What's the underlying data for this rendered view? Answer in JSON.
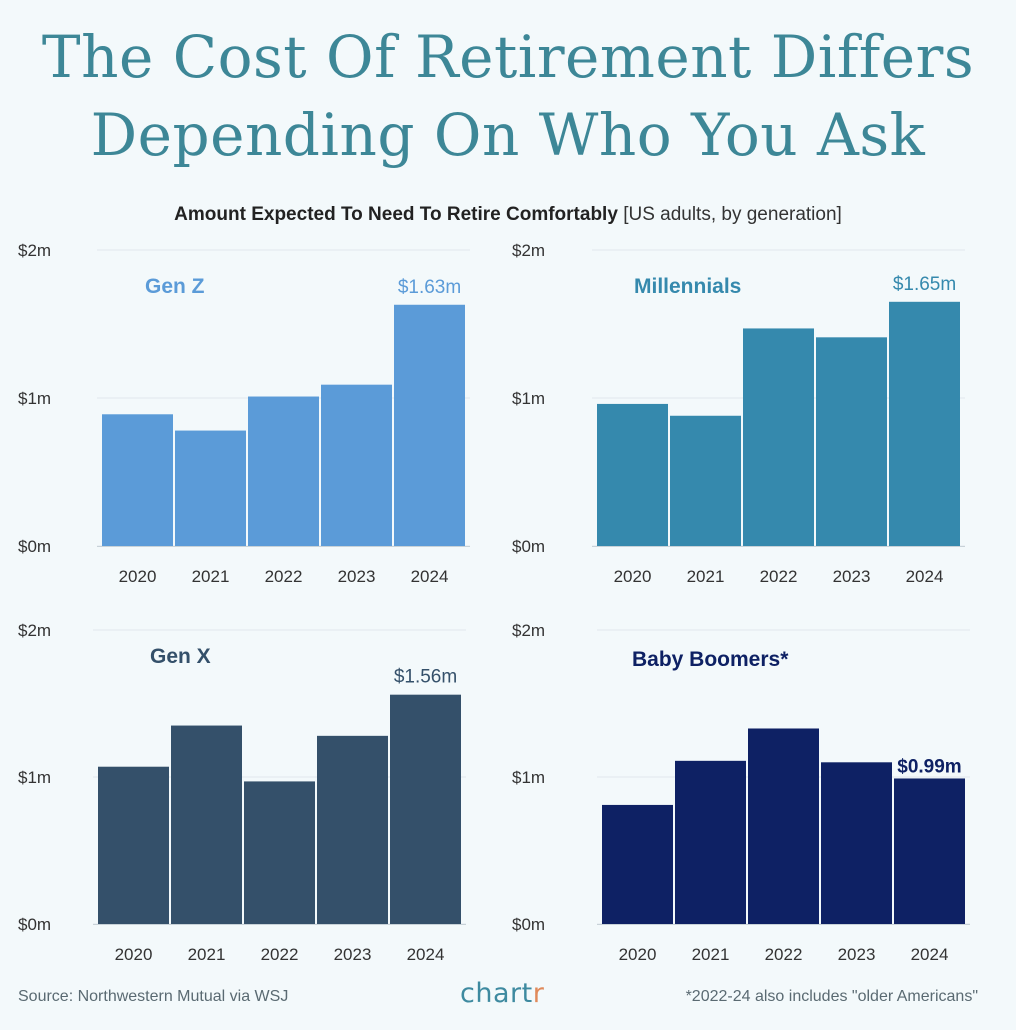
{
  "title_lines": [
    "The Cost Of Retirement Differs",
    "Depending On Who You Ask"
  ],
  "subtitle": {
    "main": "Amount Expected To Need To Retire Comfortably",
    "note": "[US adults, by generation]"
  },
  "footer": {
    "source": "Source: Northwestern Mutual via WSJ",
    "logo_main": "chart",
    "logo_accent": "r",
    "note": "*2022-24 also includes \"older Americans\""
  },
  "colors": {
    "gen_z": "#5b9bd8",
    "millennials": "#3589ad",
    "gen_x": "#34506a",
    "boomers": "#0e2164",
    "axis_text": "#333333",
    "grid": "#e2e8ec"
  },
  "chart_data": [
    {
      "type": "bar",
      "title": "Gen Z",
      "categories": [
        "2020",
        "2021",
        "2022",
        "2023",
        "2024"
      ],
      "values": [
        0.89,
        0.78,
        1.01,
        1.09,
        1.63
      ],
      "ylim": [
        0,
        2
      ],
      "yticks": [
        "$0m",
        "$1m",
        "$2m"
      ],
      "annotation": {
        "index": 4,
        "text": "$1.63m"
      }
    },
    {
      "type": "bar",
      "title": "Millennials",
      "categories": [
        "2020",
        "2021",
        "2022",
        "2023",
        "2024"
      ],
      "values": [
        0.96,
        0.88,
        1.47,
        1.41,
        1.65
      ],
      "ylim": [
        0,
        2
      ],
      "yticks": [
        "$0m",
        "$1m",
        "$2m"
      ],
      "annotation": {
        "index": 4,
        "text": "$1.65m"
      }
    },
    {
      "type": "bar",
      "title": "Gen X",
      "categories": [
        "2020",
        "2021",
        "2022",
        "2023",
        "2024"
      ],
      "values": [
        1.07,
        1.35,
        0.97,
        1.28,
        1.56
      ],
      "ylim": [
        0,
        2
      ],
      "yticks": [
        "$0m",
        "$1m",
        "$2m"
      ],
      "annotation": {
        "index": 4,
        "text": "$1.56m"
      }
    },
    {
      "type": "bar",
      "title": "Baby Boomers*",
      "categories": [
        "2020",
        "2021",
        "2022",
        "2023",
        "2024"
      ],
      "values": [
        0.81,
        1.11,
        1.33,
        1.1,
        0.99
      ],
      "ylim": [
        0,
        2
      ],
      "yticks": [
        "$0m",
        "$1m",
        "$2m"
      ],
      "annotation": {
        "index": 4,
        "text": "$0.99m"
      }
    }
  ]
}
